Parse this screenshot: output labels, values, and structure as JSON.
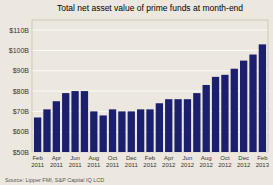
{
  "chart_data": {
    "type": "bar",
    "title": "Total net asset value of prime funds at month-end",
    "annotations": [
      "Source: Lipper FMI, S&P Capital IQ LCD"
    ],
    "categories": [
      "Feb\n2011",
      null,
      "Apr\n2011",
      null,
      "Jun\n2011",
      null,
      "Aug\n2011",
      null,
      "Oct\n2011",
      null,
      "Dec\n2011",
      null,
      "Feb\n2012",
      null,
      "Apr\n2012",
      null,
      "Jun\n2012",
      null,
      "Aug\n2012",
      null,
      "Oct\n2012",
      null,
      "Dec\n2012",
      null,
      "Feb\n2013"
    ],
    "values": [
      67,
      71,
      75,
      79,
      80,
      80,
      70,
      68,
      71,
      70,
      70,
      71,
      71,
      74,
      76,
      76,
      76,
      79,
      83,
      87,
      88,
      91,
      95,
      98,
      103
    ],
    "color": "#1b1f6e",
    "ylim": [
      50,
      115
    ],
    "yticks": [
      {
        "value": 50,
        "label": "$50B"
      },
      {
        "value": 60,
        "label": "$60B"
      },
      {
        "value": 70,
        "label": "$70B"
      },
      {
        "value": 80,
        "label": "$80B"
      },
      {
        "value": 90,
        "label": "$90B"
      },
      {
        "value": 100,
        "label": "$100B"
      },
      {
        "value": 110,
        "label": "$110B"
      }
    ],
    "grid": true
  }
}
